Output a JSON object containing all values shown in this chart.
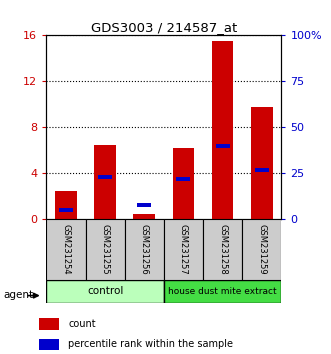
{
  "title": "GDS3003 / 214587_at",
  "samples": [
    "GSM231254",
    "GSM231255",
    "GSM231256",
    "GSM231257",
    "GSM231258",
    "GSM231259"
  ],
  "count_values": [
    2.5,
    6.5,
    0.5,
    6.2,
    15.5,
    9.8
  ],
  "percentile_percent": [
    5,
    23,
    8,
    22,
    40,
    27
  ],
  "ylim_left": [
    0,
    16
  ],
  "ylim_right": [
    0,
    100
  ],
  "left_yticks": [
    0,
    4,
    8,
    12,
    16
  ],
  "right_yticks": [
    0,
    25,
    50,
    75,
    100
  ],
  "right_yticklabels": [
    "0",
    "25",
    "50",
    "75",
    "100%"
  ],
  "bar_color": "#cc0000",
  "dot_color": "#0000cc",
  "control_label": "control",
  "treatment_label": "house dust mite extract",
  "agent_label": "agent",
  "control_color": "#bbffbb",
  "treatment_color": "#44dd44",
  "legend_count_label": "count",
  "legend_percentile_label": "percentile rank within the sample",
  "bar_width": 0.55,
  "tick_label_color_left": "#cc0000",
  "tick_label_color_right": "#0000cc"
}
